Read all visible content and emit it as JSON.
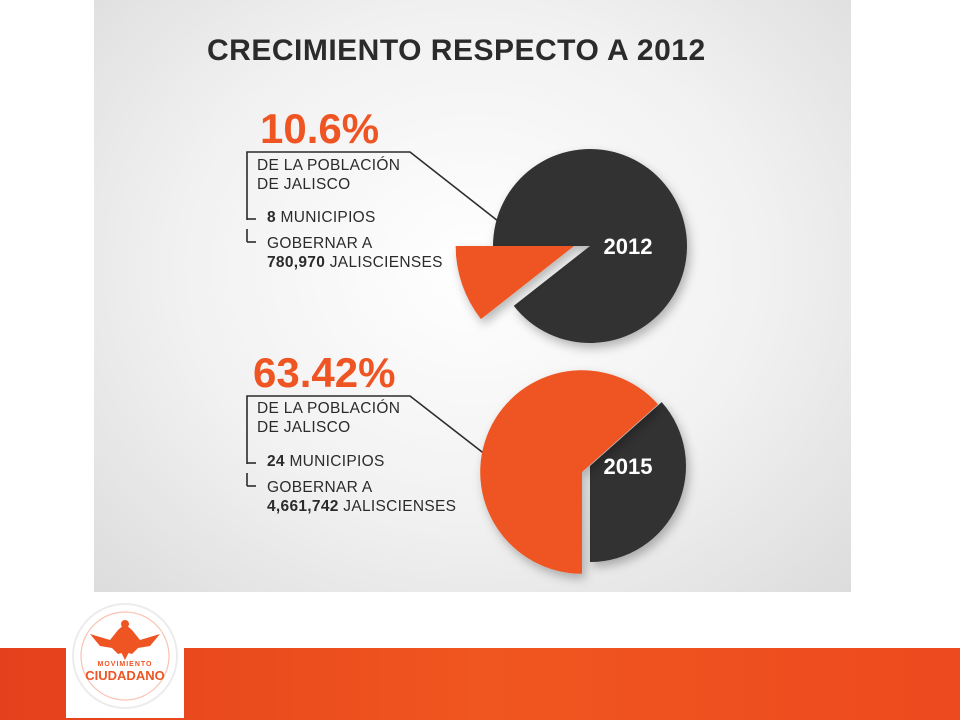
{
  "title": "CRECIMIENTO RESPECTO A 2012",
  "logo": {
    "line1": "MOVIMIENTO",
    "line2": "CIUDADANO"
  },
  "colors": {
    "accent": "#ef5423",
    "dark": "#333333",
    "text": "#2b2b2b"
  },
  "blocks": [
    {
      "percentage": "10.6%",
      "population_label": [
        "DE LA POBLACIÓN",
        "DE JALISCO"
      ],
      "municipios_count": "8",
      "municipios_label": "MUNICIPIOS",
      "gobernar_label": "GOBERNAR A",
      "people_count": "780,970",
      "people_label": "JALISCIENSES"
    },
    {
      "percentage": "63.42%",
      "population_label": [
        "DE LA POBLACIÓN",
        "DE JALISCO"
      ],
      "municipios_count": "24",
      "municipios_label": "MUNICIPIOS",
      "gobernar_label": "GOBERNAR A",
      "people_count": "4,661,742",
      "people_label": "JALISCIENSES"
    }
  ],
  "chart_data": [
    {
      "type": "pie",
      "label": "2012",
      "highlight_value": 10.6,
      "rest_value": 89.4,
      "highlight_color": "#ef5423",
      "rest_color": "#333333"
    },
    {
      "type": "pie",
      "label": "2015",
      "highlight_value": 63.42,
      "rest_value": 36.58,
      "highlight_color": "#ef5423",
      "rest_color": "#333333"
    }
  ]
}
